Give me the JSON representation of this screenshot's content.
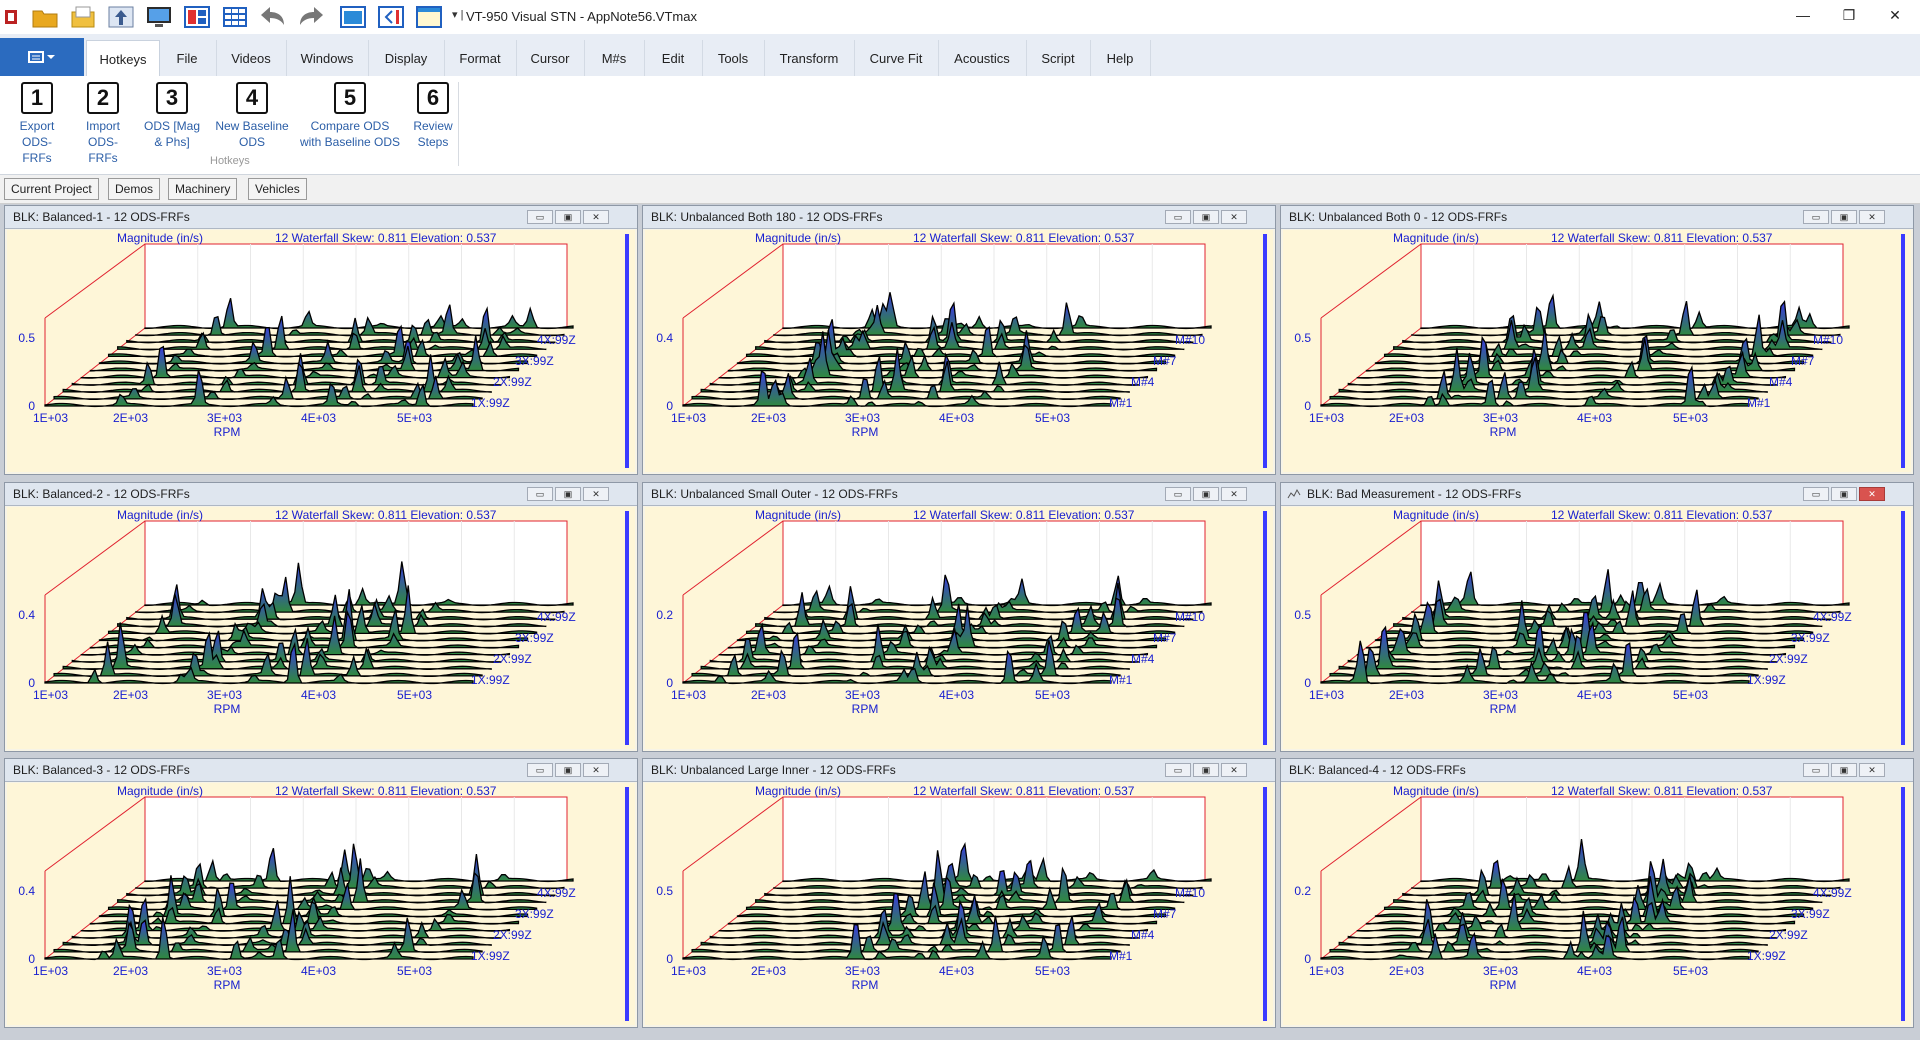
{
  "titlebar": {
    "separator": "|",
    "title": "VT-950 Visual STN - AppNote56.VTmax",
    "icons": [
      "app-logo-icon",
      "open-folder-icon",
      "open-file-icon",
      "upload-icon",
      "monitor-icon",
      "layout-panels-icon",
      "grid-view-icon",
      "undo-icon",
      "redo-icon",
      "maximize-window-icon",
      "collapse-panel-icon",
      "window-layout-icon"
    ],
    "dropdown_glyph": "▾",
    "minimize": "—",
    "restore": "❐",
    "close": "✕"
  },
  "ribbon_tabs": [
    "Hotkeys",
    "File",
    "Videos",
    "Windows",
    "Display",
    "Format",
    "Cursor",
    "M#s",
    "Edit",
    "Tools",
    "Transform",
    "Curve Fit",
    "Acoustics",
    "Script",
    "Help"
  ],
  "ribbon": {
    "group_label": "Hotkeys",
    "buttons": [
      {
        "num": "1",
        "line1": "Export",
        "line2": "ODS-FRFs"
      },
      {
        "num": "2",
        "line1": "Import",
        "line2": "ODS-FRFs"
      },
      {
        "num": "3",
        "line1": "ODS [Mag",
        "line2": "& Phs]"
      },
      {
        "num": "4",
        "line1": "New Baseline",
        "line2": "ODS"
      },
      {
        "num": "5",
        "line1": "Compare ODS",
        "line2": "with Baseline ODS"
      },
      {
        "num": "6",
        "line1": "Review",
        "line2": "Steps"
      }
    ]
  },
  "project_tabs": [
    "Current Project",
    "Demos",
    "Machinery",
    "Vehicles"
  ],
  "graph_common": {
    "magnitude_label": "Magnitude (in/s)",
    "waterfall_label": "12 Waterfall Skew: 0.811 Elevation: 0.537",
    "x_ticks": [
      "1E+03",
      "2E+03",
      "3E+03",
      "4E+03",
      "5E+03"
    ],
    "x_label": "RPM",
    "colors": {
      "frame": "#e0212f",
      "text": "#1a20d0",
      "peak_top": "#3a3ae0",
      "peak_base": "#2f8a3c",
      "line": "#000000",
      "background": "#fef6d8"
    }
  },
  "windows": [
    {
      "title": "BLK: Balanced-1 - 12 ODS-FRFs",
      "y_ticks": [
        "0",
        "0.5"
      ],
      "labels": [
        "4X:99Z",
        "3X:99Z",
        "2X:99Z",
        "1X:99Z"
      ],
      "seed": 1
    },
    {
      "title": "BLK: Unbalanced Both 180 - 12 ODS-FRFs",
      "y_ticks": [
        "0",
        "0.4"
      ],
      "labels": [
        "M#10",
        "M#7",
        "M#4",
        "M#1"
      ],
      "seed": 2
    },
    {
      "title": "BLK: Unbalanced Both 0 - 12 ODS-FRFs",
      "y_ticks": [
        "0",
        "0.5"
      ],
      "labels": [
        "M#10",
        "M#7",
        "M#4",
        "M#1"
      ],
      "seed": 3
    },
    {
      "title": "BLK: Balanced-2 - 12 ODS-FRFs",
      "y_ticks": [
        "0",
        "0.4"
      ],
      "labels": [
        "4X:99Z",
        "3X:99Z",
        "2X:99Z",
        "1X:99Z"
      ],
      "seed": 4
    },
    {
      "title": "BLK: Unbalanced Small Outer - 12 ODS-FRFs",
      "y_ticks": [
        "0",
        "0.2"
      ],
      "labels": [
        "M#10",
        "M#7",
        "M#4",
        "M#1"
      ],
      "seed": 5
    },
    {
      "title": "BLK: Bad Measurement - 12 ODS-FRFs",
      "y_ticks": [
        "0",
        "0.5"
      ],
      "labels": [
        "4X:99Z",
        "3X:99Z",
        "2X:99Z",
        "1X:99Z"
      ],
      "seed": 6,
      "active": true
    },
    {
      "title": "BLK: Balanced-3 - 12 ODS-FRFs",
      "y_ticks": [
        "0",
        "0.4"
      ],
      "labels": [
        "4X:99Z",
        "3X:99Z",
        "2X:99Z",
        "1X:99Z"
      ],
      "seed": 7
    },
    {
      "title": "BLK: Unbalanced Large Inner - 12 ODS-FRFs",
      "y_ticks": [
        "0",
        "0.5"
      ],
      "labels": [
        "M#10",
        "M#7",
        "M#4",
        "M#1"
      ],
      "seed": 8
    },
    {
      "title": "BLK: Balanced-4 - 12 ODS-FRFs",
      "y_ticks": [
        "0",
        "0.2"
      ],
      "labels": [
        "4X:99Z",
        "3X:99Z",
        "2X:99Z",
        "1X:99Z"
      ],
      "seed": 9
    }
  ]
}
